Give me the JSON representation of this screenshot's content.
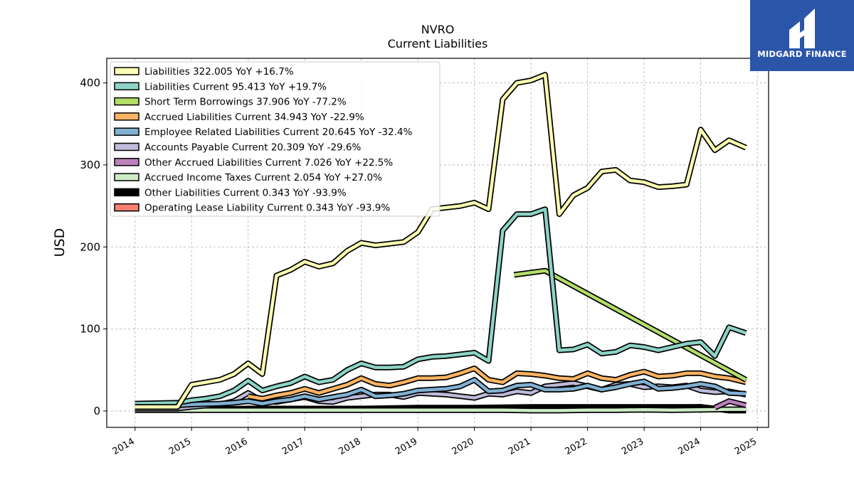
{
  "brand": {
    "name": "MIDGARD FINANCE"
  },
  "chart_data": {
    "type": "line",
    "title": "NVRO",
    "subtitle": "Current  Liabilities",
    "ylabel": "USD",
    "xlabel": "",
    "xlim": [
      2013.5,
      2025.2
    ],
    "ylim": [
      -20,
      430
    ],
    "x_ticks": [
      "2014",
      "2015",
      "2016",
      "2017",
      "2018",
      "2019",
      "2020",
      "2021",
      "2022",
      "2023",
      "2024",
      "2025"
    ],
    "y_ticks": [
      "0",
      "100",
      "200",
      "300",
      "400"
    ],
    "grid": true,
    "legend_position": "top-left",
    "series": [
      {
        "name": "Liabilities",
        "legend_label": "Liabilities  322.005 YoY +16.7%",
        "color": "#ffffb3",
        "x": [
          2014.0,
          2014.75,
          2015.0,
          2015.25,
          2015.5,
          2015.75,
          2016.0,
          2016.25,
          2016.5,
          2016.75,
          2017.0,
          2017.25,
          2017.5,
          2017.75,
          2018.0,
          2018.25,
          2018.5,
          2018.75,
          2019.0,
          2019.25,
          2019.5,
          2019.75,
          2020.0,
          2020.25,
          2020.5,
          2020.75,
          2021.0,
          2021.25,
          2021.5,
          2021.75,
          2022.0,
          2022.25,
          2022.5,
          2022.75,
          2023.0,
          2023.25,
          2023.5,
          2023.75,
          2024.0,
          2024.25,
          2024.5,
          2024.8
        ],
        "y": [
          5,
          5,
          32,
          35,
          38,
          45,
          58,
          45,
          165,
          172,
          182,
          176,
          180,
          195,
          205,
          202,
          204,
          206,
          218,
          246,
          248,
          250,
          254,
          246,
          380,
          400,
          403,
          410,
          240,
          263,
          272,
          292,
          294,
          281,
          279,
          273,
          274,
          276,
          343,
          318,
          330,
          321
        ]
      },
      {
        "name": "Liabilities Current",
        "legend_label": "Liabilities Current  95.413 YoY +19.7%",
        "color": "#8dd3c7",
        "x": [
          2014.0,
          2014.75,
          2015.0,
          2015.25,
          2015.5,
          2015.75,
          2016.0,
          2016.25,
          2016.5,
          2016.75,
          2017.0,
          2017.25,
          2017.5,
          2017.75,
          2018.0,
          2018.25,
          2018.5,
          2018.75,
          2019.0,
          2019.25,
          2019.5,
          2019.75,
          2020.0,
          2020.25,
          2020.5,
          2020.75,
          2021.0,
          2021.25,
          2021.5,
          2021.75,
          2022.0,
          2022.25,
          2022.5,
          2022.75,
          2023.0,
          2023.25,
          2023.5,
          2023.75,
          2024.0,
          2024.25,
          2024.5,
          2024.8
        ],
        "y": [
          9,
          10,
          13,
          15,
          18,
          25,
          37,
          25,
          30,
          34,
          42,
          35,
          38,
          50,
          58,
          53,
          53,
          54,
          63,
          66,
          67,
          69,
          71,
          61,
          220,
          240,
          240,
          246,
          74,
          75,
          81,
          70,
          72,
          80,
          78,
          74,
          78,
          82,
          84,
          67,
          102,
          95
        ]
      },
      {
        "name": "Short Term Borrowings",
        "legend_label": "Short Term Borrowings  37.906 YoY -77.2%",
        "color": "#b3de69",
        "x": [
          2020.7,
          2021.25,
          2024.8
        ],
        "y": [
          166,
          171,
          38
        ]
      },
      {
        "name": "Accrued Liabilities Current",
        "legend_label": "Accrued Liabilities Current  34.943 YoY -22.9%",
        "color": "#fdb462",
        "x": [
          2016.0,
          2016.25,
          2016.5,
          2016.75,
          2017.0,
          2017.25,
          2017.5,
          2017.75,
          2018.0,
          2018.25,
          2018.5,
          2018.75,
          2019.0,
          2019.25,
          2019.5,
          2019.75,
          2020.0,
          2020.25,
          2020.5,
          2020.75,
          2021.0,
          2021.25,
          2021.5,
          2021.75,
          2022.0,
          2022.25,
          2022.5,
          2022.75,
          2023.0,
          2023.25,
          2023.5,
          2023.75,
          2024.0,
          2024.25,
          2024.5,
          2024.8
        ],
        "y": [
          18,
          15,
          19,
          22,
          27,
          22,
          27,
          32,
          40,
          33,
          31,
          35,
          40,
          40,
          41,
          46,
          52,
          38,
          35,
          46,
          45,
          43,
          40,
          39,
          46,
          40,
          38,
          44,
          48,
          42,
          43,
          46,
          46,
          42,
          40,
          35
        ]
      },
      {
        "name": "Employee Related Liabilities Current",
        "legend_label": "Employee Related Liabilities Current  20.645 YoY -32.4%",
        "color": "#80b1d3",
        "x": [
          2014.0,
          2014.75,
          2015.0,
          2015.5,
          2015.75,
          2016.0,
          2016.25,
          2016.5,
          2016.75,
          2017.0,
          2017.25,
          2017.5,
          2017.75,
          2018.0,
          2018.25,
          2018.5,
          2018.75,
          2019.0,
          2019.25,
          2019.5,
          2019.75,
          2020.0,
          2020.25,
          2020.5,
          2020.75,
          2021.0,
          2021.25,
          2021.5,
          2021.75,
          2022.0,
          2022.25,
          2022.5,
          2022.75,
          2023.0,
          2023.25,
          2023.5,
          2023.75,
          2024.0,
          2024.25,
          2024.5,
          2024.8
        ],
        "y": [
          7,
          7,
          8,
          9,
          10,
          12,
          9,
          12,
          14,
          18,
          14,
          17,
          20,
          26,
          18,
          19,
          21,
          25,
          26,
          27,
          30,
          38,
          24,
          25,
          31,
          32,
          26,
          26,
          27,
          31,
          26,
          29,
          33,
          36,
          27,
          28,
          30,
          33,
          30,
          22,
          21
        ]
      },
      {
        "name": "Accounts Payable Current",
        "legend_label": "Accounts Payable Current  20.309 YoY -29.6%",
        "color": "#bebada",
        "x": [
          2014.0,
          2014.75,
          2015.0,
          2015.5,
          2015.75,
          2016.0,
          2016.25,
          2016.5,
          2016.75,
          2017.0,
          2017.25,
          2017.5,
          2017.75,
          2018.0,
          2018.25,
          2018.5,
          2018.75,
          2019.0,
          2019.25,
          2019.5,
          2019.75,
          2020.0,
          2020.25,
          2020.5,
          2020.75,
          2021.0,
          2021.25,
          2021.5,
          2021.75,
          2022.0,
          2022.25,
          2022.5,
          2022.75,
          2023.0,
          2023.25,
          2023.5,
          2023.75,
          2024.0,
          2024.25,
          2024.5,
          2024.8
        ],
        "y": [
          3,
          3,
          5,
          8,
          12,
          22,
          12,
          11,
          14,
          17,
          12,
          11,
          16,
          18,
          20,
          20,
          17,
          22,
          21,
          20,
          18,
          16,
          21,
          20,
          24,
          22,
          30,
          32,
          34,
          30,
          26,
          32,
          33,
          29,
          30,
          29,
          31,
          25,
          23,
          24,
          20
        ]
      },
      {
        "name": "Other Accrued Liabilities Current",
        "legend_label": "Other Accrued Liabilities Current  7.026 YoY +22.5%",
        "color": "#bc80bd",
        "x": [
          2024.25,
          2024.5,
          2024.8
        ],
        "y": [
          4,
          12,
          7
        ]
      },
      {
        "name": "Accrued Income Taxes Current",
        "legend_label": "Accrued Income Taxes Current  2.054 YoY +27.0%",
        "color": "#ccebc5",
        "x": [
          2014.0,
          2016.0,
          2018.0,
          2020.0,
          2020.5,
          2021.0,
          2021.5,
          2022.0,
          2022.5,
          2023.0,
          2023.5,
          2024.0,
          2024.5,
          2024.8
        ],
        "y": [
          1,
          1,
          1,
          1,
          1,
          0.5,
          0.5,
          1,
          1,
          1.5,
          1,
          1.5,
          2,
          2
        ]
      },
      {
        "name": "Other Liabilities Current",
        "legend_label": "Other Liabilities Current  0.343 YoY -93.9%",
        "color": "#000000",
        "x": [
          2014.0,
          2015.0,
          2016.0,
          2017.0,
          2018.0,
          2019.0,
          2020.0,
          2021.0,
          2022.0,
          2023.0,
          2024.0,
          2024.5,
          2024.8
        ],
        "y": [
          2,
          2,
          3,
          3,
          3,
          4,
          4,
          5,
          5,
          5,
          5,
          1,
          0.5
        ]
      },
      {
        "name": "Operating Lease Liability Current",
        "legend_label": "Operating Lease Liability Current  0.343 YoY -93.9%",
        "color": "#fb8072",
        "x": [
          2020.0,
          2021.0,
          2022.0,
          2023.0,
          2024.0,
          2024.5,
          2024.8
        ],
        "y": [
          3,
          3,
          4,
          4,
          5,
          0.5,
          0.5
        ]
      }
    ]
  }
}
